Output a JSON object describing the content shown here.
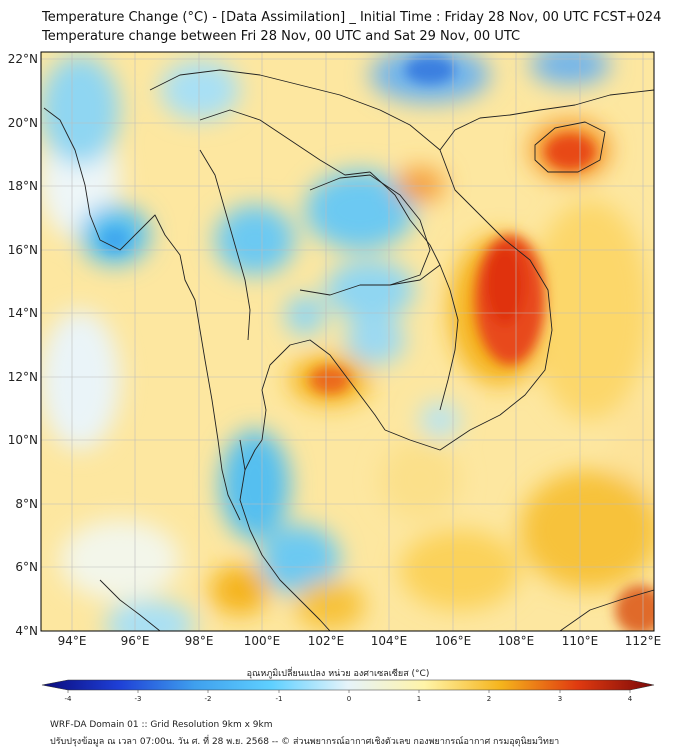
{
  "title_line1": "Temperature Change (°C) - [Data Assimilation] _ Initial Time : Friday 28 Nov, 00 UTC FCST+024",
  "title_line2": "Temperature change between Fri 28 Nov, 00 UTC and Sat 29 Nov, 00 UTC",
  "lat_labels": [
    "22°N",
    "20°N",
    "18°N",
    "16°N",
    "14°N",
    "12°N",
    "10°N",
    "8°N",
    "6°N",
    "4°N"
  ],
  "lon_labels": [
    "94°E",
    "96°E",
    "98°E",
    "100°E",
    "102°E",
    "104°E",
    "106°E",
    "108°E",
    "110°E",
    "112°E"
  ],
  "colorbar": {
    "label": "อุณหภูมิเปลี่ยนแปลง หน่วย องศาเซลเซียส (°C)",
    "ticks": [
      "-4",
      "-3",
      "-2",
      "-1",
      "0",
      "1",
      "2",
      "3",
      "4"
    ],
    "min": -4,
    "max": 4,
    "colors": [
      "#0a0a7a",
      "#1e3fd6",
      "#3fa0ee",
      "#5fd0ff",
      "#e6f4fa",
      "#fff4a8",
      "#f5b41c",
      "#e03a10",
      "#7a0808"
    ]
  },
  "footer_line1": "WRF-DA Domain 01 :: Grid Resolution 9km x 9km",
  "footer_line2": "ปรับปรุงข้อมูล ณ เวลา 07:00น. วัน ศ. ที่ 28 พ.ย. 2568 -- © ส่วนพยากรณ์อากาศเชิงตัวเลข กองพยากรณ์อากาศ กรมอุตุนิยมวิทยา"
}
